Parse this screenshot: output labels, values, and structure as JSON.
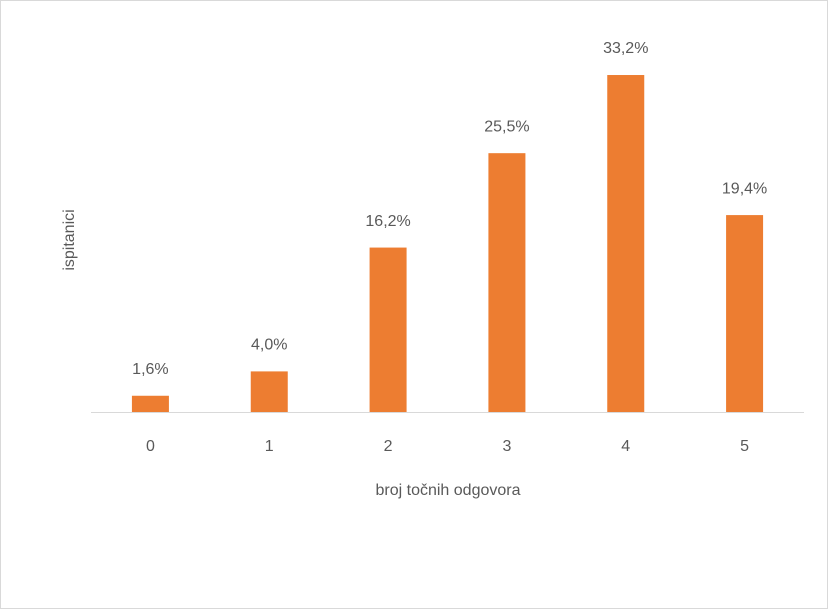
{
  "chart_data": {
    "type": "bar",
    "x_label": "broj točnih odgovora",
    "y_label": "ispitanici",
    "categories": [
      "0",
      "1",
      "2",
      "3",
      "4",
      "5"
    ],
    "values": [
      1.6,
      4.0,
      16.2,
      25.5,
      33.2,
      19.4
    ],
    "value_labels": [
      "1,6%",
      "4,0%",
      "16,2%",
      "25,5%",
      "33,2%",
      "19,4%"
    ],
    "color": "#ed7d31"
  }
}
